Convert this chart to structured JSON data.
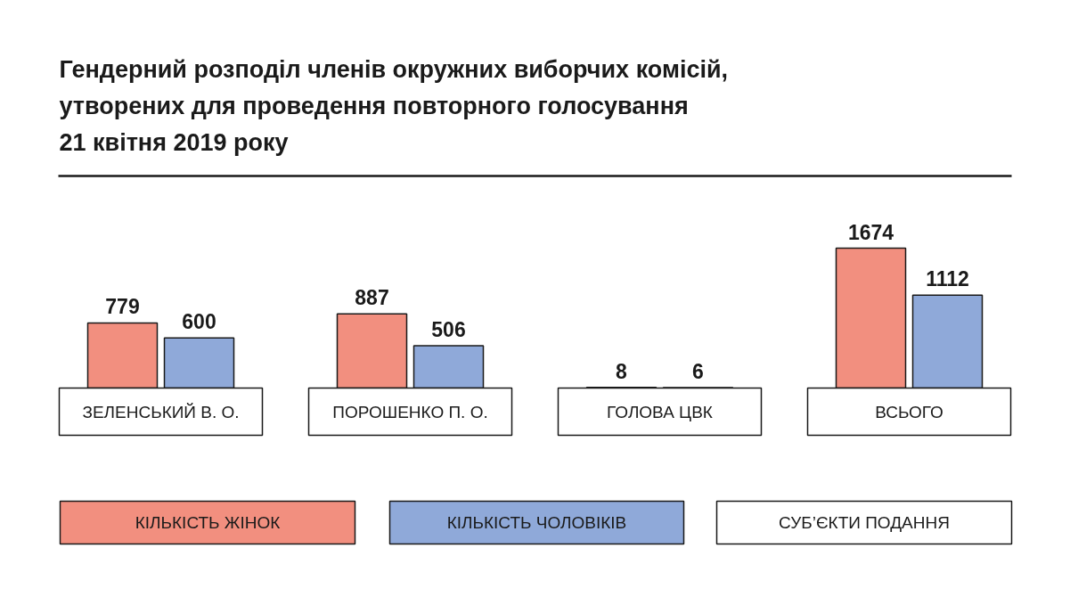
{
  "chart_data": {
    "type": "bar",
    "title": "Гендерний розподіл членів окружних виборчих комісій,\nутворених для проведення повторного голосування\n21 квітня 2019 року",
    "categories": [
      "ЗЕЛЕНСЬКИЙ В. О.",
      "ПОРОШЕНКО П. О.",
      "ГОЛОВА ЦВК",
      "ВСЬОГО"
    ],
    "series": [
      {
        "name": "КІЛЬКІСТЬ ЖІНОК",
        "color": "#f28f7f",
        "values": [
          779,
          887,
          8,
          1674
        ]
      },
      {
        "name": "КІЛЬКІСТЬ ЧОЛОВІКІВ",
        "color": "#8fa9d9",
        "values": [
          600,
          506,
          6,
          1112
        ]
      }
    ],
    "data_labels": true,
    "legend": "bottom",
    "annotations": [
      "СУБ’ЄКТИ ПОДАННЯ"
    ]
  }
}
